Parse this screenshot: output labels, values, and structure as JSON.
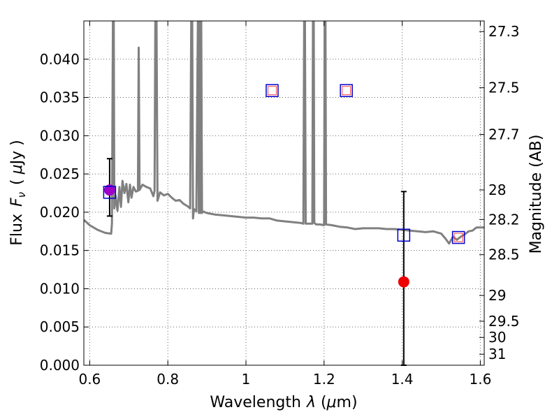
{
  "chart_data": {
    "type": "scatter",
    "xlabel_main": "Wavelength",
    "xlabel_symbol": "λ",
    "xlabel_unit_open": " (",
    "xlabel_unit_mu": "μ",
    "xlabel_unit_rest": "m)",
    "ylabel_main": "Flux",
    "ylabel_symbol": "F",
    "ylabel_subscript": "ν",
    "ylabel_unit_open": "( ",
    "ylabel_unit_mu": "μ",
    "ylabel_unit_rest": "Jy )",
    "y2label": "Magnitude (AB)",
    "xlim": [
      0.585,
      1.61
    ],
    "ylim": [
      0.0,
      0.045
    ],
    "grid": true,
    "x_ticks": [
      {
        "value": 0.6,
        "label": "0.6"
      },
      {
        "value": 0.8,
        "label": "0.8"
      },
      {
        "value": 1.0,
        "label": "1"
      },
      {
        "value": 1.2,
        "label": "1.2"
      },
      {
        "value": 1.4,
        "label": "1.4"
      },
      {
        "value": 1.6,
        "label": "1.6"
      }
    ],
    "y_ticks": [
      {
        "value": 0.0,
        "label": "0.000"
      },
      {
        "value": 0.005,
        "label": "0.005"
      },
      {
        "value": 0.01,
        "label": "0.010"
      },
      {
        "value": 0.015,
        "label": "0.015"
      },
      {
        "value": 0.02,
        "label": "0.020"
      },
      {
        "value": 0.025,
        "label": "0.025"
      },
      {
        "value": 0.03,
        "label": "0.030"
      },
      {
        "value": 0.035,
        "label": "0.035"
      },
      {
        "value": 0.04,
        "label": "0.040"
      }
    ],
    "y2_ticks": [
      {
        "flux": 0.04361,
        "label": "27.3"
      },
      {
        "flux": 0.03627,
        "label": "27.5"
      },
      {
        "flux": 0.03017,
        "label": "27.7"
      },
      {
        "flux": 0.02291,
        "label": "28"
      },
      {
        "flux": 0.01905,
        "label": "28.2"
      },
      {
        "flux": 0.01445,
        "label": "28.5"
      },
      {
        "flux": 0.00912,
        "label": "29"
      },
      {
        "flux": 0.00575,
        "label": "29.5"
      },
      {
        "flux": 0.00363,
        "label": "30"
      },
      {
        "flux": 0.00144,
        "label": "31"
      }
    ],
    "colors": {
      "spectrum": "#808080",
      "model_square": "#0000cc",
      "inner_square": "#ff4444",
      "observed_point": "#ee0000",
      "purple_point": "#a000c8",
      "errorbar": "#000000",
      "grid": "#666666"
    },
    "spectrum": {
      "name": "",
      "points": [
        [
          0.585,
          0.019
        ],
        [
          0.6,
          0.0183
        ],
        [
          0.62,
          0.0177
        ],
        [
          0.64,
          0.0173
        ],
        [
          0.655,
          0.0172
        ],
        [
          0.657,
          0.0185
        ],
        [
          0.6595,
          0.045
        ],
        [
          0.6615,
          0.045
        ],
        [
          0.663,
          0.0205
        ],
        [
          0.666,
          0.0222
        ],
        [
          0.671,
          0.0202
        ],
        [
          0.676,
          0.0233
        ],
        [
          0.68,
          0.0207
        ],
        [
          0.684,
          0.0241
        ],
        [
          0.689,
          0.0225
        ],
        [
          0.694,
          0.0237
        ],
        [
          0.699,
          0.0213
        ],
        [
          0.703,
          0.0236
        ],
        [
          0.707,
          0.0219
        ],
        [
          0.712,
          0.0233
        ],
        [
          0.718,
          0.0227
        ],
        [
          0.7235,
          0.0228
        ],
        [
          0.7255,
          0.0415
        ],
        [
          0.7275,
          0.0229
        ],
        [
          0.735,
          0.0236
        ],
        [
          0.745,
          0.0233
        ],
        [
          0.755,
          0.0231
        ],
        [
          0.763,
          0.0221
        ],
        [
          0.766,
          0.0228
        ],
        [
          0.768,
          0.045
        ],
        [
          0.771,
          0.045
        ],
        [
          0.7735,
          0.0215
        ],
        [
          0.78,
          0.0226
        ],
        [
          0.79,
          0.0222
        ],
        [
          0.8,
          0.0224
        ],
        [
          0.81,
          0.0219
        ],
        [
          0.82,
          0.0215
        ],
        [
          0.83,
          0.0216
        ],
        [
          0.84,
          0.0211
        ],
        [
          0.85,
          0.0208
        ],
        [
          0.857,
          0.0205
        ],
        [
          0.86,
          0.045
        ],
        [
          0.8625,
          0.045
        ],
        [
          0.8645,
          0.0192
        ],
        [
          0.867,
          0.0204
        ],
        [
          0.873,
          0.0201
        ],
        [
          0.877,
          0.045
        ],
        [
          0.8795,
          0.0199
        ],
        [
          0.8815,
          0.045
        ],
        [
          0.8835,
          0.0199
        ],
        [
          0.8855,
          0.045
        ],
        [
          0.8875,
          0.0199
        ],
        [
          0.89,
          0.0201
        ],
        [
          0.9,
          0.0199
        ],
        [
          0.91,
          0.0198
        ],
        [
          0.92,
          0.0197
        ],
        [
          0.94,
          0.0196
        ],
        [
          0.96,
          0.0195
        ],
        [
          0.98,
          0.0194
        ],
        [
          1.0,
          0.0193
        ],
        [
          1.02,
          0.0193
        ],
        [
          1.04,
          0.0192
        ],
        [
          1.06,
          0.0192
        ],
        [
          1.08,
          0.0189
        ],
        [
          1.1,
          0.0188
        ],
        [
          1.12,
          0.0187
        ],
        [
          1.14,
          0.0186
        ],
        [
          1.147,
          0.0185
        ],
        [
          1.149,
          0.045
        ],
        [
          1.151,
          0.045
        ],
        [
          1.153,
          0.0185
        ],
        [
          1.17,
          0.0185
        ],
        [
          1.1715,
          0.045
        ],
        [
          1.1735,
          0.045
        ],
        [
          1.175,
          0.0186
        ],
        [
          1.18,
          0.0184
        ],
        [
          1.19,
          0.0184
        ],
        [
          1.2,
          0.0183
        ],
        [
          1.2015,
          0.045
        ],
        [
          1.2035,
          0.045
        ],
        [
          1.205,
          0.0184
        ],
        [
          1.22,
          0.0183
        ],
        [
          1.24,
          0.0181
        ],
        [
          1.26,
          0.018
        ],
        [
          1.28,
          0.0178
        ],
        [
          1.3,
          0.0179
        ],
        [
          1.32,
          0.0179
        ],
        [
          1.34,
          0.0179
        ],
        [
          1.36,
          0.0178
        ],
        [
          1.38,
          0.0178
        ],
        [
          1.4,
          0.0177
        ],
        [
          1.42,
          0.0176
        ],
        [
          1.44,
          0.0175
        ],
        [
          1.46,
          0.0174
        ],
        [
          1.48,
          0.0175
        ],
        [
          1.5,
          0.0172
        ],
        [
          1.51,
          0.0166
        ],
        [
          1.52,
          0.0159
        ],
        [
          1.53,
          0.0168
        ],
        [
          1.54,
          0.0164
        ],
        [
          1.55,
          0.0168
        ],
        [
          1.56,
          0.0171
        ],
        [
          1.57,
          0.0175
        ],
        [
          1.58,
          0.0176
        ],
        [
          1.59,
          0.018
        ],
        [
          1.6,
          0.018
        ],
        [
          1.61,
          0.018
        ]
      ]
    },
    "model_squares": [
      {
        "x": 0.651,
        "y": 0.0226
      },
      {
        "x": 1.067,
        "y": 0.0359
      },
      {
        "x": 1.257,
        "y": 0.0359
      },
      {
        "x": 1.404,
        "y": 0.017
      },
      {
        "x": 1.544,
        "y": 0.0167
      }
    ],
    "inner_squares": [
      {
        "x": 1.067,
        "y": 0.0359
      },
      {
        "x": 1.257,
        "y": 0.0359
      },
      {
        "x": 1.544,
        "y": 0.0167
      }
    ],
    "observed": [
      {
        "x": 0.651,
        "y": 0.0229,
        "yerr_low": 0.0195,
        "yerr_high": 0.027,
        "color": "purple"
      },
      {
        "x": 1.404,
        "y": 0.0109,
        "yerr_low": 0.0,
        "yerr_high": 0.0227,
        "color": "red"
      }
    ]
  }
}
